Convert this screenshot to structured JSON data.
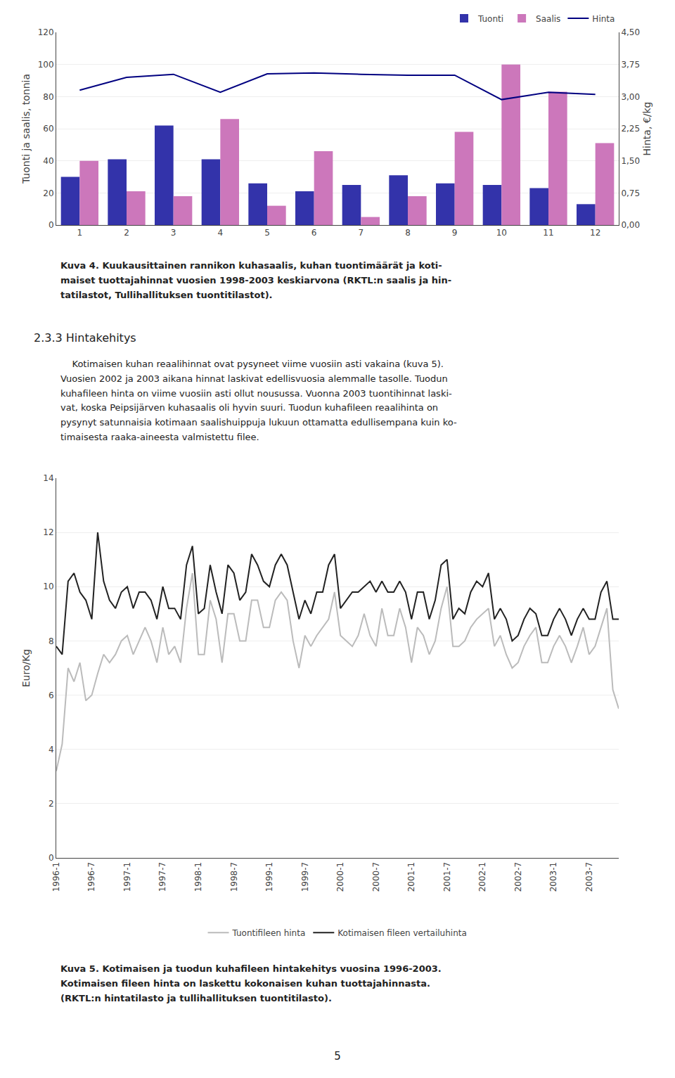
{
  "chart_data": [
    {
      "type": "bar",
      "categories": [
        "1",
        "2",
        "3",
        "4",
        "5",
        "6",
        "7",
        "8",
        "9",
        "10",
        "11",
        "12"
      ],
      "series": [
        {
          "name": "Tuonti",
          "color": "#3333AA",
          "values": [
            30,
            41,
            62,
            41,
            26,
            21,
            25,
            31,
            26,
            25,
            23,
            13
          ]
        },
        {
          "name": "Saalis",
          "color": "#CC77BB",
          "values": [
            40,
            21,
            18,
            66,
            12,
            46,
            5,
            18,
            58,
            100,
            83,
            51
          ]
        },
        {
          "name": "Hinta",
          "type": "line",
          "axis": "y2",
          "color": "#000080",
          "values": [
            3.15,
            3.45,
            3.52,
            3.1,
            3.53,
            3.55,
            3.52,
            3.5,
            3.5,
            2.93,
            3.1,
            3.05
          ]
        }
      ],
      "ylabel": "Tuonti ja saalis, tonnia",
      "y2label": "Hinta, €/kg",
      "ylim": [
        0,
        120
      ],
      "yticks": [
        0,
        20,
        40,
        60,
        80,
        100,
        120
      ],
      "y2lim": [
        0.0,
        4.5
      ],
      "y2ticks": [
        {
          "value": 0.0,
          "label": "0,00"
        },
        {
          "value": 0.75,
          "label": "0,75"
        },
        {
          "value": 1.5,
          "label": "1,50"
        },
        {
          "value": 2.25,
          "label": "2,25"
        },
        {
          "value": 3.0,
          "label": "3,00"
        },
        {
          "value": 3.75,
          "label": "3,75"
        },
        {
          "value": 4.5,
          "label": "4,50"
        }
      ],
      "grid": true,
      "legend": "upper right",
      "annotations": [
        "Kuva 4. Kuukausittainen rannikon kuhasaalis, kuhan tuontimäärät ja koti-\nmaiset tuottajahinnat vuosien 1998-2003 keskiarvona (RKTL:n saalis ja hin-\ntatilastot, Tullihallituksen tuontitilastot).",
        "2.3.3 Hintakehitys",
        "    Kotimaisen kuhan reaalihinnat ovat pysyneet viime vuosiin asti vakaina (kuva 5).\nVuosien 2002 ja 2003 aikana hinnat laskivat edellisvuosia alemmalle tasolle. Tuodun\nkuhafileen hinta on viime vuosiin asti ollut nousussa. Vuonna 2003 tuontihinnat laski-\nvat, koska Peipsijärven kuhasaalis oli hyvin suuri. Tuodun kuhafileen reaalihinta on\npysynyt satunnaisia kotimaan saalishuippuja lukuun ottamatta edullisempana kuin ko-\ntimaisesta raaka-aineesta valmistettu filee."
      ]
    },
    {
      "type": "line",
      "categories": [
        "1996-1",
        null,
        null,
        null,
        null,
        null,
        "1996-7",
        null,
        null,
        null,
        null,
        null,
        "1997-1",
        null,
        null,
        null,
        null,
        null,
        "1997-7",
        null,
        null,
        null,
        null,
        null,
        "1998-1",
        null,
        null,
        null,
        null,
        null,
        "1998-7",
        null,
        null,
        null,
        null,
        null,
        "1999-1",
        null,
        null,
        null,
        null,
        null,
        "1999-7",
        null,
        null,
        null,
        null,
        null,
        "2000-1",
        null,
        null,
        null,
        null,
        null,
        "2000-7",
        null,
        null,
        null,
        null,
        null,
        "2001-1",
        null,
        null,
        null,
        null,
        null,
        "2001-7",
        null,
        null,
        null,
        null,
        null,
        "2002-1",
        null,
        null,
        null,
        null,
        null,
        "2002-7",
        null,
        null,
        null,
        null,
        null,
        "2003-1",
        null,
        null,
        null,
        null,
        null,
        "2003-7",
        null,
        null,
        null,
        null,
        null
      ],
      "series": [
        {
          "name": "Tuontifileen hinta",
          "color": "#BBBBBB",
          "values": [
            3.2,
            4.2,
            7.0,
            6.5,
            7.2,
            5.8,
            6.0,
            6.8,
            7.5,
            7.2,
            7.5,
            8.0,
            8.2,
            7.5,
            8.0,
            8.5,
            8.0,
            7.2,
            8.5,
            7.5,
            7.8,
            7.2,
            9.2,
            10.5,
            7.5,
            7.5,
            9.5,
            8.8,
            7.2,
            9.0,
            9.0,
            8.0,
            8.0,
            9.5,
            9.5,
            8.5,
            8.5,
            9.5,
            9.8,
            9.5,
            8.0,
            7.0,
            8.2,
            7.8,
            8.2,
            8.5,
            8.8,
            9.8,
            8.2,
            8.0,
            7.8,
            8.2,
            9.0,
            8.2,
            7.8,
            9.2,
            8.2,
            8.2,
            9.2,
            8.5,
            7.2,
            8.5,
            8.2,
            7.5,
            8.0,
            9.2,
            10.0,
            7.8,
            7.8,
            8.0,
            8.5,
            8.8,
            9.0,
            9.2,
            7.8,
            8.2,
            7.5,
            7.0,
            7.2,
            7.8,
            8.2,
            8.5,
            7.2,
            7.2,
            7.8,
            8.2,
            7.8,
            7.2,
            7.8,
            8.5,
            7.5,
            7.8,
            8.5,
            9.2,
            6.2,
            5.5
          ]
        },
        {
          "name": "Kotimaisen fileen vertailuhinta",
          "color": "#222222",
          "values": [
            7.8,
            7.5,
            10.2,
            10.5,
            9.8,
            9.5,
            8.8,
            12.0,
            10.2,
            9.5,
            9.2,
            9.8,
            10.0,
            9.2,
            9.8,
            9.8,
            9.5,
            8.8,
            10.0,
            9.2,
            9.2,
            8.8,
            10.8,
            11.5,
            9.0,
            9.2,
            10.8,
            9.8,
            9.0,
            10.8,
            10.5,
            9.5,
            9.8,
            11.2,
            10.8,
            10.2,
            10.0,
            10.8,
            11.2,
            10.8,
            9.8,
            8.8,
            9.5,
            9.0,
            9.8,
            9.8,
            10.8,
            11.2,
            9.2,
            9.5,
            9.8,
            9.8,
            10.0,
            10.2,
            9.8,
            10.2,
            9.8,
            9.8,
            10.2,
            9.8,
            8.8,
            9.8,
            9.8,
            8.8,
            9.5,
            10.8,
            11.0,
            8.8,
            9.2,
            9.0,
            9.8,
            10.2,
            10.0,
            10.5,
            8.8,
            9.2,
            8.8,
            8.0,
            8.2,
            8.8,
            9.2,
            9.0,
            8.2,
            8.2,
            8.8,
            9.2,
            8.8,
            8.2,
            8.8,
            9.2,
            8.8,
            8.8,
            9.8,
            10.2,
            8.8,
            8.8
          ]
        }
      ],
      "ylabel": "Euro/Kg",
      "ylim": [
        0,
        14
      ],
      "yticks": [
        0,
        2,
        4,
        6,
        8,
        10,
        12,
        14
      ],
      "grid": true,
      "legend": "bottom",
      "annotations": [
        "Kuva 5. Kotimaisen ja tuodun kuhafileen hintakehitys vuosina 1996-2003.\nKotimaisen fileen hinta on laskettu kokonaisen kuhan tuottajahinnasta.\n(RKTL:n hintatilasto ja tullihallituksen tuontitilasto).",
        "5"
      ]
    }
  ]
}
